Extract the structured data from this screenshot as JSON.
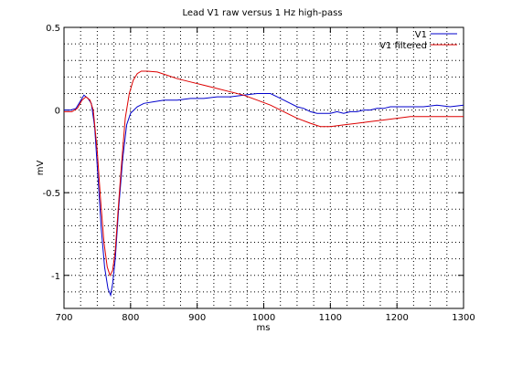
{
  "chart_data": {
    "type": "line",
    "title": "Lead V1 raw versus 1 Hz high-pass",
    "xlabel": "ms",
    "ylabel": "mV",
    "xlim": [
      700,
      1300
    ],
    "ylim": [
      -1.2,
      0.5
    ],
    "xticks": [
      700,
      800,
      900,
      1000,
      1100,
      1200,
      1300
    ],
    "yticks": [
      0.5,
      0,
      -0.5,
      -1
    ],
    "ytick_labels": [
      "0.5",
      "0",
      "-0.5",
      "-1"
    ],
    "grid": true,
    "legend_position": "top-right",
    "series": [
      {
        "name": "V1",
        "color": "#0000cc",
        "points": [
          [
            700,
            0.0
          ],
          [
            710,
            0.0
          ],
          [
            718,
            0.01
          ],
          [
            724,
            0.05
          ],
          [
            730,
            0.09
          ],
          [
            736,
            0.07
          ],
          [
            741,
            0.04
          ],
          [
            746,
            -0.1
          ],
          [
            751,
            -0.4
          ],
          [
            756,
            -0.72
          ],
          [
            761,
            -0.95
          ],
          [
            766,
            -1.08
          ],
          [
            770,
            -1.12
          ],
          [
            773,
            -1.05
          ],
          [
            777,
            -0.9
          ],
          [
            782,
            -0.6
          ],
          [
            788,
            -0.3
          ],
          [
            794,
            -0.09
          ],
          [
            800,
            -0.02
          ],
          [
            810,
            0.02
          ],
          [
            820,
            0.04
          ],
          [
            835,
            0.05
          ],
          [
            850,
            0.06
          ],
          [
            870,
            0.06
          ],
          [
            890,
            0.07
          ],
          [
            910,
            0.07
          ],
          [
            930,
            0.08
          ],
          [
            950,
            0.08
          ],
          [
            970,
            0.09
          ],
          [
            990,
            0.1
          ],
          [
            1000,
            0.1
          ],
          [
            1010,
            0.1
          ],
          [
            1020,
            0.08
          ],
          [
            1030,
            0.06
          ],
          [
            1040,
            0.04
          ],
          [
            1050,
            0.02
          ],
          [
            1060,
            0.01
          ],
          [
            1070,
            -0.01
          ],
          [
            1080,
            -0.02
          ],
          [
            1090,
            -0.02
          ],
          [
            1100,
            -0.02
          ],
          [
            1110,
            -0.01
          ],
          [
            1120,
            -0.02
          ],
          [
            1130,
            -0.01
          ],
          [
            1140,
            -0.01
          ],
          [
            1150,
            0.0
          ],
          [
            1160,
            0.0
          ],
          [
            1170,
            0.01
          ],
          [
            1180,
            0.01
          ],
          [
            1190,
            0.02
          ],
          [
            1200,
            0.02
          ],
          [
            1220,
            0.02
          ],
          [
            1240,
            0.02
          ],
          [
            1260,
            0.03
          ],
          [
            1280,
            0.02
          ],
          [
            1300,
            0.03
          ]
        ]
      },
      {
        "name": "V1 filtered",
        "color": "#dd0000",
        "points": [
          [
            700,
            -0.01
          ],
          [
            712,
            -0.01
          ],
          [
            720,
            0.01
          ],
          [
            727,
            0.06
          ],
          [
            733,
            0.08
          ],
          [
            739,
            0.06
          ],
          [
            744,
            0.0
          ],
          [
            750,
            -0.25
          ],
          [
            755,
            -0.55
          ],
          [
            760,
            -0.8
          ],
          [
            765,
            -0.95
          ],
          [
            769,
            -1.0
          ],
          [
            773,
            -0.97
          ],
          [
            777,
            -0.85
          ],
          [
            781,
            -0.62
          ],
          [
            786,
            -0.35
          ],
          [
            792,
            -0.05
          ],
          [
            798,
            0.1
          ],
          [
            804,
            0.18
          ],
          [
            810,
            0.22
          ],
          [
            816,
            0.235
          ],
          [
            825,
            0.235
          ],
          [
            840,
            0.23
          ],
          [
            855,
            0.21
          ],
          [
            870,
            0.19
          ],
          [
            890,
            0.17
          ],
          [
            910,
            0.15
          ],
          [
            930,
            0.13
          ],
          [
            950,
            0.11
          ],
          [
            970,
            0.09
          ],
          [
            990,
            0.06
          ],
          [
            1010,
            0.03
          ],
          [
            1030,
            -0.01
          ],
          [
            1050,
            -0.05
          ],
          [
            1070,
            -0.08
          ],
          [
            1085,
            -0.1
          ],
          [
            1100,
            -0.1
          ],
          [
            1120,
            -0.09
          ],
          [
            1140,
            -0.08
          ],
          [
            1160,
            -0.07
          ],
          [
            1180,
            -0.06
          ],
          [
            1200,
            -0.05
          ],
          [
            1220,
            -0.04
          ],
          [
            1240,
            -0.04
          ],
          [
            1260,
            -0.04
          ],
          [
            1280,
            -0.04
          ],
          [
            1300,
            -0.04
          ]
        ]
      }
    ]
  }
}
